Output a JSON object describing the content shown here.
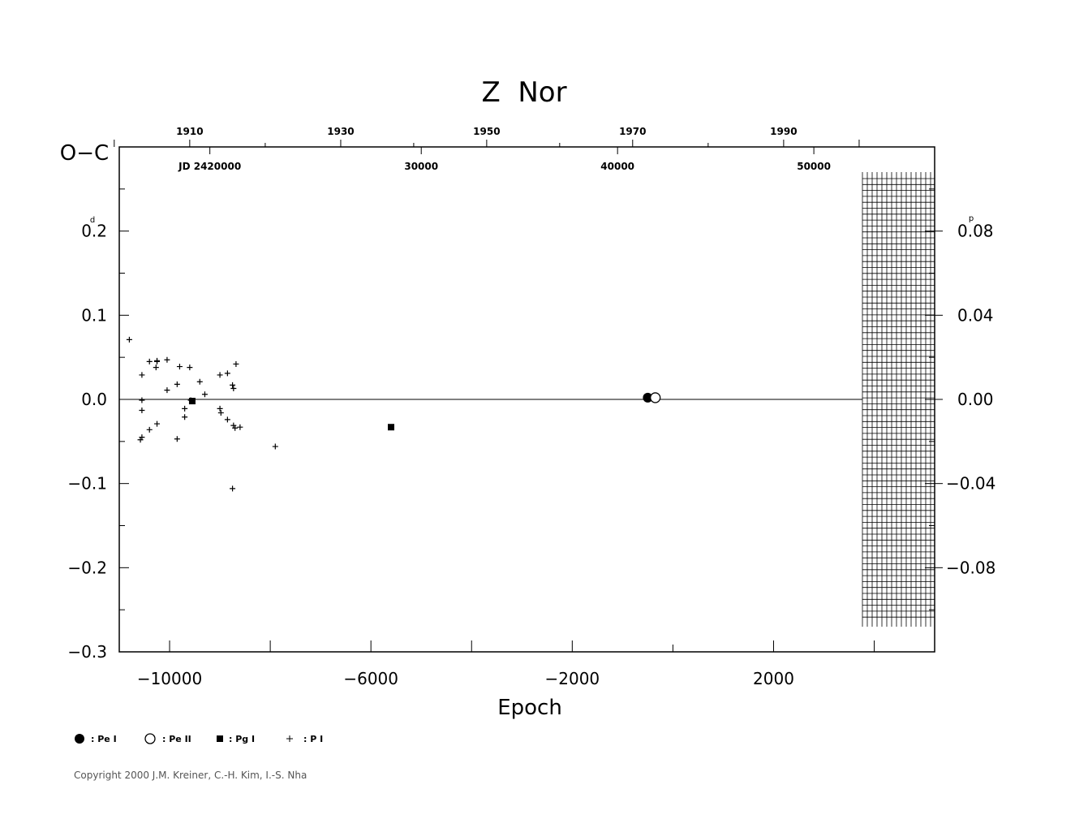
{
  "chart_data": {
    "type": "scatter",
    "title": "Z  Nor",
    "ylabel": "O−C",
    "ylabel_unit": "d",
    "right_axis_unit": "p",
    "xlabel": "Epoch",
    "xlim": [
      -11000,
      5200
    ],
    "ylim": [
      -0.3,
      0.3
    ],
    "right_ylim": [
      -0.12,
      0.12
    ],
    "x_ticks": [
      {
        "value": -10000,
        "label": "−10000"
      },
      {
        "value": -6000,
        "label": "−6000"
      },
      {
        "value": -2000,
        "label": "−2000"
      },
      {
        "value": 2000,
        "label": "2000"
      }
    ],
    "y_ticks": [
      {
        "value": 0.2,
        "label": "0.2"
      },
      {
        "value": 0.1,
        "label": "0.1"
      },
      {
        "value": 0.0,
        "label": "0.0"
      },
      {
        "value": -0.1,
        "label": "−0.1"
      },
      {
        "value": -0.2,
        "label": "−0.2"
      },
      {
        "value": -0.3,
        "label": "−0.3"
      }
    ],
    "right_y_ticks": [
      {
        "value": 0.08,
        "label": "0.08"
      },
      {
        "value": 0.04,
        "label": "0.04"
      },
      {
        "value": 0.0,
        "label": "0.00"
      },
      {
        "value": -0.04,
        "label": "−0.04"
      },
      {
        "value": -0.08,
        "label": "−0.08"
      }
    ],
    "top_year_ticks": [
      {
        "epoch": -9600,
        "label": "1910"
      },
      {
        "epoch": -6600,
        "label": "1930"
      },
      {
        "epoch": -3700,
        "label": "1950"
      },
      {
        "epoch": -800,
        "label": "1970"
      },
      {
        "epoch": 2200,
        "label": "1990"
      }
    ],
    "top_jd_ticks": [
      {
        "epoch": -9200,
        "label": "JD 2420000"
      },
      {
        "epoch": -5000,
        "label": "30000"
      },
      {
        "epoch": -1100,
        "label": "40000"
      },
      {
        "epoch": 2800,
        "label": "50000"
      }
    ],
    "legend": [
      {
        "marker": "filled-circle",
        "label": ": Pe I"
      },
      {
        "marker": "open-circle",
        "label": ": Pe II"
      },
      {
        "marker": "filled-square",
        "label": ": Pg I"
      },
      {
        "marker": "plus",
        "label": ": P I"
      }
    ],
    "legend_position": "bottom-left",
    "grid": false,
    "series": [
      {
        "name": "Pe I",
        "marker": "filled-circle",
        "points": [
          {
            "x": -500,
            "y": 0.002
          }
        ]
      },
      {
        "name": "Pe II",
        "marker": "open-circle",
        "points": [
          {
            "x": -350,
            "y": 0.002
          }
        ]
      },
      {
        "name": "Pg I",
        "marker": "filled-square",
        "points": [
          {
            "x": -9550,
            "y": -0.002
          },
          {
            "x": -5600,
            "y": -0.033
          }
        ]
      },
      {
        "name": "P I",
        "marker": "plus",
        "points": [
          {
            "x": -10800,
            "y": 0.071
          },
          {
            "x": -10550,
            "y": 0.029
          },
          {
            "x": -10550,
            "y": -0.001
          },
          {
            "x": -10550,
            "y": -0.013
          },
          {
            "x": -10550,
            "y": -0.045
          },
          {
            "x": -10580,
            "y": -0.048
          },
          {
            "x": -10400,
            "y": 0.045
          },
          {
            "x": -10400,
            "y": -0.036
          },
          {
            "x": -10250,
            "y": 0.046
          },
          {
            "x": -10250,
            "y": 0.045
          },
          {
            "x": -10270,
            "y": 0.038
          },
          {
            "x": -10250,
            "y": -0.029
          },
          {
            "x": -10050,
            "y": 0.047
          },
          {
            "x": -10050,
            "y": 0.011
          },
          {
            "x": -9850,
            "y": 0.018
          },
          {
            "x": -9850,
            "y": -0.047
          },
          {
            "x": -9800,
            "y": 0.039
          },
          {
            "x": -9700,
            "y": -0.011
          },
          {
            "x": -9700,
            "y": -0.021
          },
          {
            "x": -9600,
            "y": 0.038
          },
          {
            "x": -9580,
            "y": -0.001
          },
          {
            "x": -9400,
            "y": 0.021
          },
          {
            "x": -9300,
            "y": 0.006
          },
          {
            "x": -9000,
            "y": 0.029
          },
          {
            "x": -9000,
            "y": -0.011
          },
          {
            "x": -8980,
            "y": -0.016
          },
          {
            "x": -8850,
            "y": 0.031
          },
          {
            "x": -8850,
            "y": -0.024
          },
          {
            "x": -8750,
            "y": 0.017
          },
          {
            "x": -8730,
            "y": 0.013
          },
          {
            "x": -8730,
            "y": -0.031
          },
          {
            "x": -8700,
            "y": -0.034
          },
          {
            "x": -8680,
            "y": 0.042
          },
          {
            "x": -8600,
            "y": -0.033
          },
          {
            "x": -8750,
            "y": -0.106
          },
          {
            "x": -7900,
            "y": -0.056
          }
        ]
      }
    ]
  },
  "copyright": "Copyright 2000 J.M. Kreiner, C.-H. Kim, I.-S. Nha"
}
